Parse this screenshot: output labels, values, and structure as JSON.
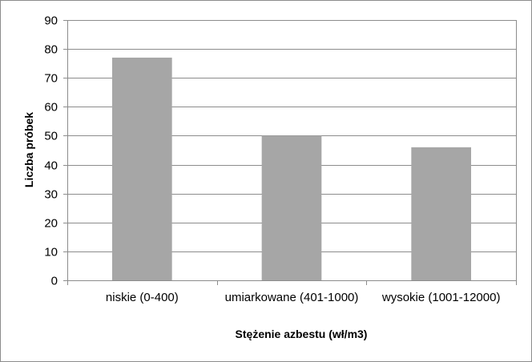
{
  "chart_data": {
    "type": "bar",
    "title": "",
    "xlabel": "Stężenie azbestu (wł/m3)",
    "ylabel": "Liczba próbek",
    "categories": [
      "niskie (0-400)",
      "umiarkowane (401-1000)",
      "wysokie (1001-12000)"
    ],
    "series": [
      {
        "values": [
          77,
          50,
          46
        ]
      }
    ],
    "ylim": [
      0,
      90
    ],
    "yticks": [
      0,
      10,
      20,
      30,
      40,
      50,
      60,
      70,
      80,
      90
    ],
    "grid": true,
    "legend": "none",
    "colors": {
      "bar": "#a6a6a6",
      "grid": "#8c8c8c",
      "axis": "#8c8c8c",
      "border": "#8c8c8c"
    }
  }
}
